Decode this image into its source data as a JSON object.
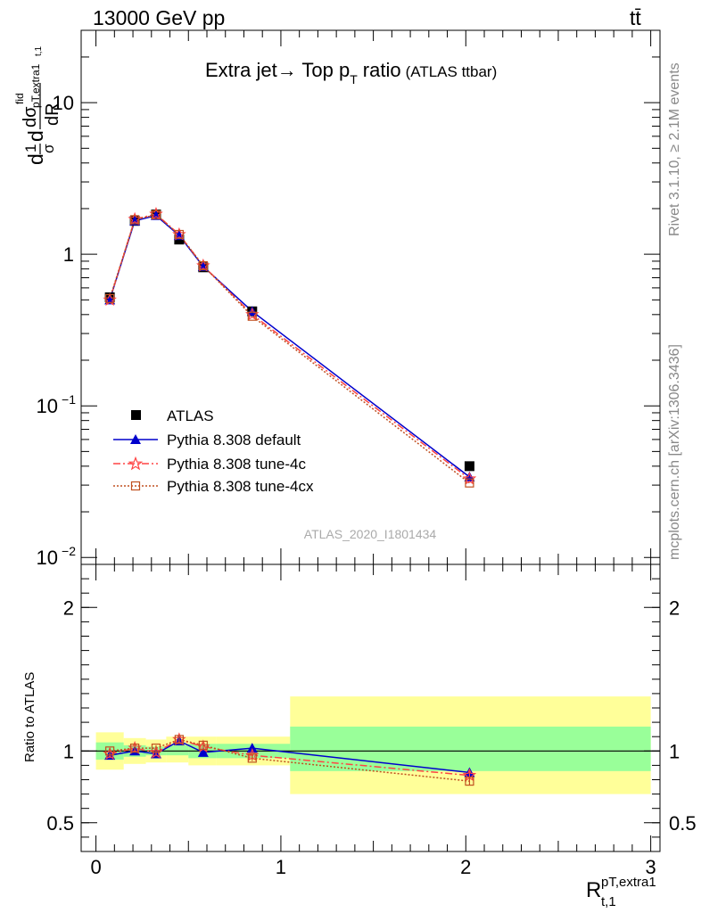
{
  "header": {
    "energy": "13000 GeV pp",
    "process_main": "tt",
    "process_bar": "̄"
  },
  "side": {
    "rivet": "Rivet 3.1.10, ≥ 2.1M events",
    "mcplots": "mcplots.cern.ch [arXiv:1306.3436]"
  },
  "chart_data": [
    {
      "type": "line",
      "title": {
        "main": "Extra jet→ Top p",
        "sub": "T",
        "tail": "ratio",
        "small": "(ATLAS ttbar)"
      },
      "analysis": "ATLAS_2020_I1801434",
      "yscale": "log",
      "ylim": [
        0.009,
        30
      ],
      "xlim": [
        -0.08,
        3.05
      ],
      "ylabel": {
        "num": "dσ",
        "sup": "fid",
        "den": "dR",
        "sub": "t,1",
        "sub2": "pT,extra1",
        "pre": "d",
        "pre2": "1",
        "pre3": "σ"
      },
      "y_ticks": [
        {
          "value": 0.01,
          "label": "10",
          "exp": "−2"
        },
        {
          "value": 0.1,
          "label": "10",
          "exp": "−1"
        },
        {
          "value": 1,
          "label": "1",
          "exp": ""
        },
        {
          "value": 10,
          "label": "10",
          "exp": ""
        }
      ],
      "x": [
        0.075,
        0.21,
        0.325,
        0.45,
        0.58,
        0.845,
        2.02
      ],
      "series": [
        {
          "name": "ATLAS",
          "color": "#000000",
          "marker": "square",
          "values": [
            0.52,
            1.66,
            1.83,
            1.25,
            0.82,
            0.42,
            0.04
          ]
        },
        {
          "name": "Pythia 8.308 default",
          "color": "#0000cc",
          "marker": "triangle",
          "line": "solid",
          "values": [
            0.5,
            1.66,
            1.8,
            1.33,
            0.83,
            0.42,
            0.034
          ]
        },
        {
          "name": "Pythia 8.308 tune-4c",
          "color": "#ff4444",
          "marker": "star",
          "line": "dashdot",
          "values": [
            0.5,
            1.7,
            1.84,
            1.35,
            0.84,
            0.4,
            0.033
          ]
        },
        {
          "name": "Pythia 8.308 tune-4cx",
          "color": "#c05020",
          "marker": "open-square",
          "line": "dotted",
          "values": [
            0.51,
            1.69,
            1.82,
            1.35,
            0.84,
            0.39,
            0.031
          ]
        }
      ]
    },
    {
      "type": "line",
      "ylabel": "Ratio to ATLAS",
      "xlabel": {
        "main": "R",
        "sup": "pT,extra1",
        "sub": "t,1"
      },
      "ylim": [
        0.3,
        2.3
      ],
      "xlim": [
        -0.08,
        3.05
      ],
      "y_ticks": [
        0.5,
        1,
        2
      ],
      "x_ticks": [
        0,
        1,
        2,
        3
      ],
      "bins": [
        {
          "lo": 0.0,
          "hi": 0.15,
          "green": [
            0.94,
            1.06
          ],
          "yellow": [
            0.87,
            1.13
          ]
        },
        {
          "lo": 0.15,
          "hi": 0.27,
          "green": [
            0.96,
            1.04
          ],
          "yellow": [
            0.91,
            1.09
          ]
        },
        {
          "lo": 0.27,
          "hi": 0.38,
          "green": [
            0.97,
            1.03
          ],
          "yellow": [
            0.92,
            1.08
          ]
        },
        {
          "lo": 0.38,
          "hi": 0.5,
          "green": [
            0.97,
            1.04
          ],
          "yellow": [
            0.92,
            1.1
          ]
        },
        {
          "lo": 0.5,
          "hi": 0.65,
          "green": [
            0.95,
            1.05
          ],
          "yellow": [
            0.9,
            1.1
          ]
        },
        {
          "lo": 0.65,
          "hi": 1.05,
          "green": [
            0.95,
            1.05
          ],
          "yellow": [
            0.9,
            1.1
          ]
        },
        {
          "lo": 1.05,
          "hi": 3.0,
          "green": [
            0.86,
            1.17
          ],
          "yellow": [
            0.7,
            1.38
          ]
        }
      ],
      "x": [
        0.075,
        0.21,
        0.325,
        0.45,
        0.58,
        0.845,
        2.02
      ],
      "series": [
        {
          "name": "Pythia 8.308 default",
          "color": "#0000cc",
          "marker": "triangle",
          "line": "solid",
          "values": [
            0.97,
            1.0,
            0.98,
            1.07,
            0.99,
            1.02,
            0.85
          ],
          "err": [
            0.03,
            0.02,
            0.02,
            0.02,
            0.02,
            0.03,
            0.03
          ]
        },
        {
          "name": "Pythia 8.308 tune-4c",
          "color": "#ff4444",
          "marker": "star",
          "line": "dashdot",
          "values": [
            0.98,
            1.02,
            0.99,
            1.08,
            1.03,
            0.97,
            0.83
          ],
          "err": [
            0.03,
            0.03,
            0.02,
            0.02,
            0.02,
            0.02,
            0.03
          ]
        },
        {
          "name": "Pythia 8.308 tune-4cx",
          "color": "#c05020",
          "marker": "open-square",
          "line": "dotted",
          "values": [
            1.0,
            1.02,
            1.02,
            1.08,
            1.04,
            0.95,
            0.79
          ],
          "err": [
            0.02,
            0.02,
            0.02,
            0.02,
            0.02,
            0.02,
            0.03
          ]
        }
      ]
    }
  ]
}
